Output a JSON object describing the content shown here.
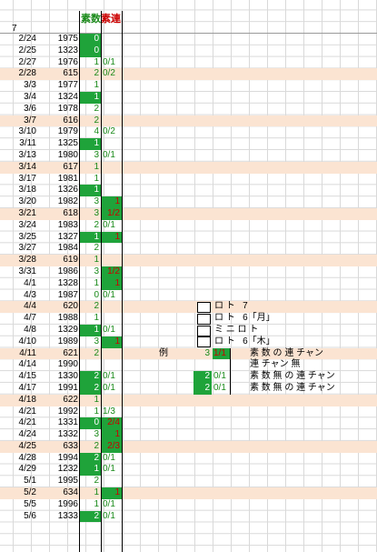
{
  "header": {
    "corner": "7",
    "col_prime": "素数",
    "col_streak": "素連"
  },
  "rows": [
    {
      "date": "2/24",
      "num": "1975",
      "c1": "0",
      "c1g": true,
      "c2": "",
      "c2g": false,
      "shade": false
    },
    {
      "date": "2/25",
      "num": "1323",
      "c1": "0",
      "c1g": true,
      "c2": "",
      "c2g": false,
      "shade": false
    },
    {
      "date": "2/27",
      "num": "1976",
      "c1": "1",
      "c1g": false,
      "c2": "0/1",
      "c2g": false,
      "shade": false
    },
    {
      "date": "2/28",
      "num": "615",
      "c1": "2",
      "c1g": false,
      "c2": "0/2",
      "c2g": false,
      "shade": true
    },
    {
      "date": "3/3",
      "num": "1977",
      "c1": "1",
      "c1g": false,
      "c2": "",
      "c2g": false,
      "shade": false
    },
    {
      "date": "3/4",
      "num": "1324",
      "c1": "1",
      "c1g": true,
      "c2": "",
      "c2g": false,
      "shade": false
    },
    {
      "date": "3/6",
      "num": "1978",
      "c1": "2",
      "c1g": false,
      "c2": "",
      "c2g": false,
      "shade": false
    },
    {
      "date": "3/7",
      "num": "616",
      "c1": "2",
      "c1g": false,
      "c2": "",
      "c2g": false,
      "shade": true
    },
    {
      "date": "3/10",
      "num": "1979",
      "c1": "4",
      "c1g": false,
      "c2": "0/2",
      "c2g": false,
      "shade": false
    },
    {
      "date": "3/11",
      "num": "1325",
      "c1": "1",
      "c1g": true,
      "c2": "",
      "c2g": false,
      "shade": false
    },
    {
      "date": "3/13",
      "num": "1980",
      "c1": "3",
      "c1g": false,
      "c2": "0/1",
      "c2g": false,
      "shade": false
    },
    {
      "date": "3/14",
      "num": "617",
      "c1": "1",
      "c1g": false,
      "c2": "",
      "c2g": false,
      "shade": true
    },
    {
      "date": "3/17",
      "num": "1981",
      "c1": "1",
      "c1g": false,
      "c2": "",
      "c2g": false,
      "shade": false
    },
    {
      "date": "3/18",
      "num": "1326",
      "c1": "1",
      "c1g": true,
      "c2": "",
      "c2g": false,
      "shade": false
    },
    {
      "date": "3/20",
      "num": "1982",
      "c1": "3",
      "c1g": false,
      "c2": "1",
      "c2g": true,
      "shade": false
    },
    {
      "date": "3/21",
      "num": "618",
      "c1": "3",
      "c1g": false,
      "c2": "1/2",
      "c2g": true,
      "shade": true
    },
    {
      "date": "3/24",
      "num": "1983",
      "c1": "2",
      "c1g": false,
      "c2": "0/1",
      "c2g": false,
      "shade": false
    },
    {
      "date": "3/25",
      "num": "1327",
      "c1": "1",
      "c1g": true,
      "c2": "1",
      "c2g": true,
      "shade": false
    },
    {
      "date": "3/27",
      "num": "1984",
      "c1": "2",
      "c1g": false,
      "c2": "",
      "c2g": false,
      "shade": false
    },
    {
      "date": "3/28",
      "num": "619",
      "c1": "1",
      "c1g": false,
      "c2": "",
      "c2g": false,
      "shade": true
    },
    {
      "date": "3/31",
      "num": "1986",
      "c1": "3",
      "c1g": false,
      "c2": "1/2",
      "c2g": true,
      "shade": false
    },
    {
      "date": "4/1",
      "num": "1328",
      "c1": "1",
      "c1g": false,
      "c2": "1",
      "c2g": true,
      "shade": false
    },
    {
      "date": "4/3",
      "num": "1987",
      "c1": "0",
      "c1g": false,
      "c2": "0/1",
      "c2g": false,
      "shade": false
    },
    {
      "date": "4/4",
      "num": "620",
      "c1": "2",
      "c1g": false,
      "c2": "",
      "c2g": false,
      "shade": true
    },
    {
      "date": "4/7",
      "num": "1988",
      "c1": "1",
      "c1g": false,
      "c2": "",
      "c2g": false,
      "shade": false
    },
    {
      "date": "4/8",
      "num": "1329",
      "c1": "1",
      "c1g": true,
      "c2": "0/1",
      "c2g": false,
      "shade": false
    },
    {
      "date": "4/10",
      "num": "1989",
      "c1": "3",
      "c1g": false,
      "c2": "1",
      "c2g": true,
      "shade": false
    },
    {
      "date": "4/11",
      "num": "621",
      "c1": "2",
      "c1g": false,
      "c2": "",
      "c2g": false,
      "shade": true
    },
    {
      "date": "4/14",
      "num": "1990",
      "c1": "",
      "c1g": false,
      "c2": "",
      "c2g": false,
      "shade": false
    },
    {
      "date": "4/15",
      "num": "1330",
      "c1": "2",
      "c1g": true,
      "c2": "0/1",
      "c2g": false,
      "shade": false
    },
    {
      "date": "4/17",
      "num": "1991",
      "c1": "2",
      "c1g": true,
      "c2": "0/1",
      "c2g": false,
      "shade": false
    },
    {
      "date": "4/18",
      "num": "622",
      "c1": "1",
      "c1g": false,
      "c2": "",
      "c2g": false,
      "shade": true
    },
    {
      "date": "4/21",
      "num": "1992",
      "c1": "1",
      "c1g": false,
      "c2": "1/3",
      "c2g": false,
      "shade": false
    },
    {
      "date": "4/21",
      "num": "1331",
      "c1": "0",
      "c1g": true,
      "c2": "2/4",
      "c2g": true,
      "shade": false
    },
    {
      "date": "4/24",
      "num": "1332",
      "c1": "3",
      "c1g": false,
      "c2": "1",
      "c2g": true,
      "shade": false
    },
    {
      "date": "4/25",
      "num": "633",
      "c1": "2",
      "c1g": false,
      "c2": "2/3",
      "c2g": true,
      "shade": true
    },
    {
      "date": "4/28",
      "num": "1994",
      "c1": "2",
      "c1g": true,
      "c2": "0/1",
      "c2g": false,
      "shade": false
    },
    {
      "date": "4/29",
      "num": "1232",
      "c1": "1",
      "c1g": true,
      "c2": "0/1",
      "c2g": false,
      "shade": false
    },
    {
      "date": "5/1",
      "num": "1995",
      "c1": "2",
      "c1g": false,
      "c2": "",
      "c2g": false,
      "shade": false
    },
    {
      "date": "5/2",
      "num": "634",
      "c1": "1",
      "c1g": false,
      "c2": "1",
      "c2g": true,
      "shade": true
    },
    {
      "date": "5/5",
      "num": "1996",
      "c1": "1",
      "c1g": false,
      "c2": "0/1",
      "c2g": false,
      "shade": false
    },
    {
      "date": "5/6",
      "num": "1333",
      "c1": "2",
      "c1g": true,
      "c2": "0/1",
      "c2g": false,
      "shade": false
    }
  ],
  "legend": {
    "lines": [
      "ロ ト   7",
      "ロ ト   6「月」",
      "ミ ニ ロ ト",
      "ロ ト   6「木」"
    ],
    "example_label": "例",
    "examples": [
      {
        "n": "3",
        "v": "1/1",
        "text": "素 数 の 連 チャン"
      },
      {
        "n": "",
        "v": "",
        "text": "連 チャン 無"
      },
      {
        "n": "2",
        "v": "0/1",
        "text": "素 数 無 の 連 チャン"
      },
      {
        "n": "2",
        "v": "0/1",
        "text": "素 数 無 の 連 チャン"
      }
    ]
  },
  "colors": {
    "green": "#1fa33a",
    "shade": "#fbe4d2",
    "red": "#cc0000"
  }
}
